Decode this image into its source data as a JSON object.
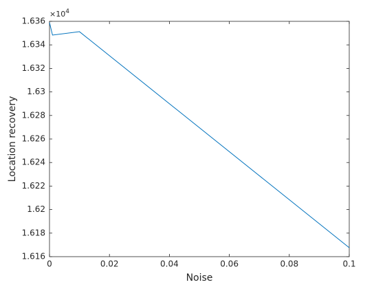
{
  "chart_data": {
    "type": "line",
    "x_label": "Noise",
    "y_label": "Location recovery",
    "y_exponent_base": "×10",
    "y_exponent": "4",
    "x": [
      0,
      0.001,
      0.01,
      0.1
    ],
    "series": [
      {
        "color": "#0072bd",
        "values": [
          1.6359,
          1.63483,
          1.63512,
          1.61676
        ]
      }
    ],
    "xlim": [
      0,
      0.1
    ],
    "xticks": [
      0,
      0.02,
      0.04,
      0.06,
      0.08,
      0.1
    ],
    "ylim": [
      1.616,
      1.636
    ],
    "yticks": [
      1.616,
      1.618,
      1.62,
      1.622,
      1.624,
      1.626,
      1.628,
      1.63,
      1.632,
      1.634,
      1.636
    ]
  }
}
